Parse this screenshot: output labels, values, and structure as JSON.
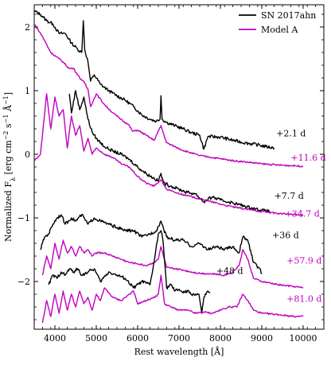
{
  "chart_data": {
    "type": "line",
    "xlabel": "Rest wavelength [Å]",
    "ylabel": "Normalized F",
    "ylabel_subscript": "λ",
    "ylabel_units": " [erg cm",
    "ylabel_units_sup1": "−2",
    "ylabel_units_mid1": " s",
    "ylabel_units_sup2": "−1",
    "ylabel_units_mid2": " Å",
    "ylabel_units_sup3": "−1",
    "ylabel_units_end": "]",
    "xlim": [
      3500,
      10500
    ],
    "ylim": [
      -2.75,
      2.35
    ],
    "xticks": [
      4000,
      5000,
      6000,
      7000,
      8000,
      9000,
      10000
    ],
    "xtick_labels": [
      "4000",
      "5000",
      "6000",
      "7000",
      "8000",
      "9000",
      "10000"
    ],
    "yticks": [
      -2,
      -1,
      0,
      1,
      2
    ],
    "ytick_labels": [
      "−2",
      "−1",
      "0",
      "1",
      "2"
    ],
    "legend": {
      "position": "top-right",
      "entries": [
        {
          "label": "SN 2017ahn",
          "color": "#000000"
        },
        {
          "label": "Model A",
          "color": "#c000c0"
        }
      ]
    },
    "series": [
      {
        "name": "SN 2017ahn",
        "epoch": "+2.1 d",
        "color": "#000000",
        "x": [
          3500,
          3650,
          3800,
          3950,
          4100,
          4250,
          4400,
          4550,
          4650,
          4686,
          4720,
          4800,
          4861,
          4950,
          5100,
          5300,
          5500,
          5700,
          5900,
          6100,
          6300,
          6450,
          6540,
          6563,
          6590,
          6700,
          6900,
          7100,
          7300,
          7500,
          7600,
          7700,
          8000,
          8300,
          8600,
          8900,
          9100,
          9300
        ],
        "y": [
          2.25,
          2.2,
          2.1,
          2.05,
          1.9,
          1.9,
          1.75,
          1.65,
          1.6,
          2.1,
          1.65,
          1.45,
          1.15,
          1.25,
          1.1,
          1.0,
          0.92,
          0.85,
          0.75,
          0.62,
          0.55,
          0.52,
          0.55,
          0.92,
          0.55,
          0.5,
          0.45,
          0.4,
          0.34,
          0.3,
          0.08,
          0.28,
          0.27,
          0.22,
          0.18,
          0.15,
          0.12,
          0.1
        ]
      },
      {
        "name": "Model A",
        "epoch": "+11.6 d",
        "color": "#c000c0",
        "x": [
          3500,
          3700,
          3900,
          4101,
          4200,
          4340,
          4450,
          4600,
          4686,
          4800,
          4861,
          5000,
          5200,
          5400,
          5600,
          5800,
          5876,
          6000,
          6200,
          6400,
          6563,
          6700,
          6900,
          7100,
          7300,
          7500,
          7700,
          8000,
          8300,
          8600,
          9000,
          9400,
          9800,
          10000
        ],
        "y": [
          2.05,
          1.85,
          1.6,
          1.5,
          1.45,
          1.35,
          1.35,
          1.2,
          1.15,
          1.02,
          0.75,
          0.95,
          0.78,
          0.65,
          0.55,
          0.45,
          0.36,
          0.38,
          0.3,
          0.22,
          0.45,
          0.18,
          0.12,
          0.06,
          0.02,
          -0.02,
          -0.04,
          -0.07,
          -0.1,
          -0.12,
          -0.15,
          -0.17,
          -0.18,
          -0.19
        ]
      },
      {
        "name": "SN 2017ahn",
        "epoch": "+7.7 d",
        "color": "#000000",
        "x": [
          4350,
          4400,
          4500,
          4600,
          4700,
          4800,
          4900,
          5000,
          5200,
          5400,
          5600,
          5800,
          6000,
          6200,
          6400,
          6500,
          6563,
          6620,
          6800,
          7000,
          7200,
          7400,
          7600,
          7800,
          8000,
          8200,
          8400,
          8600,
          8800,
          9000,
          9200
        ],
        "y": [
          0.95,
          0.65,
          1.0,
          0.7,
          0.9,
          0.55,
          0.35,
          0.25,
          0.12,
          0.05,
          0.0,
          -0.08,
          -0.2,
          -0.3,
          -0.38,
          -0.42,
          -0.3,
          -0.45,
          -0.5,
          -0.55,
          -0.6,
          -0.62,
          -0.75,
          -0.67,
          -0.72,
          -0.75,
          -0.78,
          -0.82,
          -0.85,
          -0.88,
          -0.9
        ]
      },
      {
        "name": "Model A",
        "epoch": "+34.7 d",
        "color": "#c000c0",
        "x": [
          3500,
          3650,
          3800,
          3900,
          4000,
          4100,
          4200,
          4300,
          4400,
          4500,
          4600,
          4700,
          4800,
          4900,
          5000,
          5200,
          5400,
          5600,
          5800,
          6000,
          6200,
          6400,
          6563,
          6700,
          6900,
          7200,
          7500,
          7800,
          8100,
          8400,
          8700,
          9000,
          9400,
          9800,
          10000
        ],
        "y": [
          -0.1,
          0.0,
          0.95,
          0.4,
          0.9,
          0.6,
          0.7,
          0.1,
          0.6,
          0.3,
          0.45,
          0.05,
          0.25,
          0.0,
          0.1,
          0.0,
          -0.05,
          -0.15,
          -0.2,
          -0.35,
          -0.45,
          -0.5,
          -0.4,
          -0.55,
          -0.6,
          -0.65,
          -0.7,
          -0.75,
          -0.8,
          -0.84,
          -0.87,
          -0.9,
          -0.93,
          -0.95,
          -0.96
        ]
      },
      {
        "name": "SN 2017ahn",
        "epoch": "+36 d",
        "color": "#000000",
        "x": [
          3650,
          3750,
          3850,
          3950,
          4050,
          4150,
          4250,
          4400,
          4500,
          4650,
          4800,
          4950,
          5100,
          5300,
          5500,
          5700,
          5900,
          6100,
          6300,
          6450,
          6563,
          6700,
          6900,
          7100,
          7300,
          7500,
          7700,
          7900,
          8100,
          8300,
          8450,
          8542,
          8662,
          8800,
          8950,
          9000
        ],
        "y": [
          -1.5,
          -1.3,
          -1.25,
          -1.1,
          -1.0,
          -0.95,
          -1.1,
          -1.0,
          -1.05,
          -0.95,
          -1.1,
          -1.0,
          -1.05,
          -1.1,
          -1.15,
          -1.2,
          -1.2,
          -1.3,
          -1.25,
          -1.2,
          -1.05,
          -1.3,
          -1.35,
          -1.35,
          -1.45,
          -1.4,
          -1.5,
          -1.45,
          -1.5,
          -1.45,
          -1.55,
          -1.3,
          -1.35,
          -1.7,
          -1.8,
          -1.88
        ]
      },
      {
        "name": "Model A",
        "epoch": "+57.9 d",
        "color": "#c000c0",
        "x": [
          3700,
          3800,
          3900,
          4000,
          4100,
          4200,
          4300,
          4400,
          4500,
          4600,
          4700,
          4800,
          4900,
          5000,
          5200,
          5400,
          5600,
          5800,
          6000,
          6200,
          6400,
          6500,
          6563,
          6700,
          6900,
          7100,
          7300,
          7500,
          7800,
          8100,
          8300,
          8450,
          8542,
          8662,
          8800,
          9000,
          9400,
          9800,
          10000
        ],
        "y": [
          -1.9,
          -1.6,
          -1.8,
          -1.4,
          -1.65,
          -1.35,
          -1.55,
          -1.45,
          -1.6,
          -1.45,
          -1.55,
          -1.5,
          -1.6,
          -1.55,
          -1.55,
          -1.6,
          -1.65,
          -1.7,
          -1.72,
          -1.75,
          -1.7,
          -1.65,
          -1.45,
          -1.78,
          -1.8,
          -1.82,
          -1.85,
          -1.87,
          -1.88,
          -1.9,
          -1.85,
          -1.75,
          -1.5,
          -1.65,
          -1.95,
          -2.0,
          -2.05,
          -2.08,
          -2.1
        ]
      },
      {
        "name": "SN 2017ahn",
        "epoch": "+48 d",
        "color": "#000000",
        "x": [
          3850,
          3950,
          4050,
          4150,
          4250,
          4350,
          4450,
          4550,
          4650,
          4800,
          4950,
          5100,
          5300,
          5500,
          5700,
          5900,
          6100,
          6300,
          6420,
          6500,
          6563,
          6620,
          6700,
          6800,
          6900,
          7000,
          7100,
          7200,
          7300,
          7400,
          7480,
          7550,
          7600,
          7700,
          7750
        ],
        "y": [
          -2.05,
          -1.9,
          -1.95,
          -1.85,
          -1.9,
          -1.8,
          -1.85,
          -1.8,
          -1.9,
          -1.85,
          -1.8,
          -2.0,
          -1.85,
          -1.9,
          -1.95,
          -2.1,
          -2.0,
          -2.05,
          -1.6,
          -1.25,
          -1.2,
          -1.4,
          -2.1,
          -2.05,
          -2.15,
          -2.12,
          -2.18,
          -2.15,
          -2.2,
          -2.2,
          -2.2,
          -2.5,
          -2.25,
          -2.15,
          -2.18
        ]
      },
      {
        "name": "Model A",
        "epoch": "+81.0 d",
        "color": "#c000c0",
        "x": [
          3700,
          3800,
          3900,
          4000,
          4100,
          4200,
          4300,
          4400,
          4500,
          4600,
          4700,
          4800,
          4900,
          5000,
          5100,
          5200,
          5400,
          5600,
          5800,
          5900,
          6000,
          6200,
          6400,
          6500,
          6563,
          6650,
          6800,
          7000,
          7200,
          7400,
          7600,
          7800,
          8000,
          8200,
          8400,
          8542,
          8662,
          8800,
          9000,
          9400,
          9800,
          10000
        ],
        "y": [
          -2.65,
          -2.3,
          -2.55,
          -2.2,
          -2.5,
          -2.15,
          -2.45,
          -2.2,
          -2.4,
          -2.15,
          -2.35,
          -2.25,
          -2.45,
          -2.2,
          -2.3,
          -2.1,
          -2.25,
          -2.3,
          -2.2,
          -2.15,
          -2.35,
          -2.3,
          -2.25,
          -2.2,
          -1.9,
          -2.35,
          -2.4,
          -2.45,
          -2.45,
          -2.5,
          -2.48,
          -2.5,
          -2.45,
          -2.4,
          -2.4,
          -2.2,
          -2.3,
          -2.45,
          -2.5,
          -2.52,
          -2.55,
          -2.55
        ]
      }
    ],
    "epoch_labels": [
      {
        "text": "+2.1 d",
        "color": "#000000",
        "x": 9350,
        "y": 0.28
      },
      {
        "text": "+11.6 d",
        "color": "#c000c0",
        "x": 9700,
        "y": -0.1
      },
      {
        "text": "+7.7 d",
        "color": "#000000",
        "x": 9300,
        "y": -0.7
      },
      {
        "text": "+34.7 d",
        "color": "#c000c0",
        "x": 9550,
        "y": -0.98
      },
      {
        "text": "+36 d",
        "color": "#000000",
        "x": 9250,
        "y": -1.32
      },
      {
        "text": "+57.9 d",
        "color": "#c000c0",
        "x": 9600,
        "y": -1.72
      },
      {
        "text": "+48 d",
        "color": "#000000",
        "x": 7900,
        "y": -1.88
      },
      {
        "text": "+81.0 d",
        "color": "#c000c0",
        "x": 9600,
        "y": -2.32
      }
    ]
  }
}
